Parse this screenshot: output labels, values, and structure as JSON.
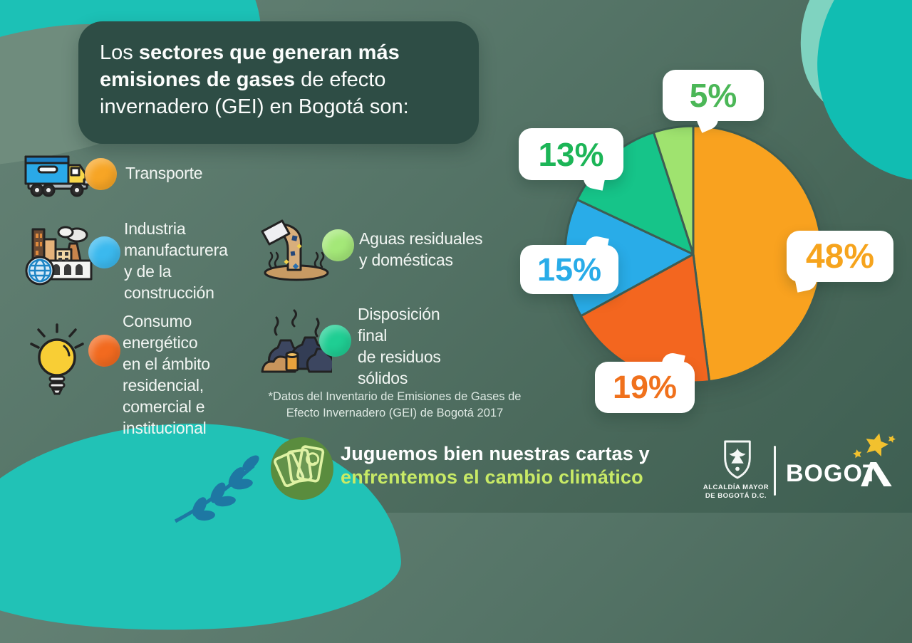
{
  "title": {
    "l1a": "Los ",
    "l1b": "sectores que generan más",
    "l2b": "emisiones de gases",
    "l2a": " de efecto",
    "l3": "invernadero (GEI) en Bogotá son:"
  },
  "legend": {
    "items": [
      {
        "label": "Transporte",
        "color": "#F7A525",
        "icon": "truck-icon"
      },
      {
        "label": "Industria\nmanufacturera\ny de la\nconstrucción",
        "color": "#3BB9EE",
        "icon": "factory-icon"
      },
      {
        "label": "Consumo\nenergético\nen el ámbito\nresidencial,\ncomercial e\ninstitucional",
        "color": "#F26A1F",
        "icon": "lightbulb-icon"
      },
      {
        "label": "Aguas residuales\ny domésticas",
        "color": "#A4E878",
        "icon": "wastewater-pipe-icon"
      },
      {
        "label": "Disposición\nfinal\nde residuos\nsólidos",
        "color": "#1FCE93",
        "icon": "solid-waste-bags-icon"
      }
    ]
  },
  "footnote": "*Datos del Inventario de Emisiones de Gases de\nEfecto Invernadero (GEI) de Bogotá 2017",
  "chart_data": {
    "type": "pie",
    "start_angle_deg": -90,
    "direction": "clockwise",
    "legend_position": "left",
    "slices": [
      {
        "category": "Transporte",
        "label": "48%",
        "value": 48,
        "color": "#F9A21F",
        "label_color": "#F6A41D"
      },
      {
        "category": "Consumo energético en el ámbito residencial, comercial e institucional",
        "label": "19%",
        "value": 19,
        "color": "#F3661F",
        "label_color": "#F0711C"
      },
      {
        "category": "Industria manufacturera y de la construcción",
        "label": "15%",
        "value": 15,
        "color": "#29ACE8",
        "label_color": "#29ACE8"
      },
      {
        "category": "Disposición final de residuos sólidos",
        "label": "13%",
        "value": 13,
        "color": "#16C489",
        "label_color": "#1CB557"
      },
      {
        "category": "Aguas residuales y domésticas",
        "label": "5%",
        "value": 5,
        "color": "#9FE36F",
        "label_color": "#4BB757"
      }
    ],
    "stroke_color": "#3E5D53"
  },
  "banner": {
    "line1": "Juguemos bien nuestras cartas y",
    "line2": "enfrentemos el cambio climático",
    "line2_color": "#C8EA66"
  },
  "logo": {
    "alcaldia": "ALCALDÍA MAYOR\nDE BOGOTÁ D.C.",
    "wordmark": "BOGOT",
    "star_color": "#F2C12E"
  }
}
